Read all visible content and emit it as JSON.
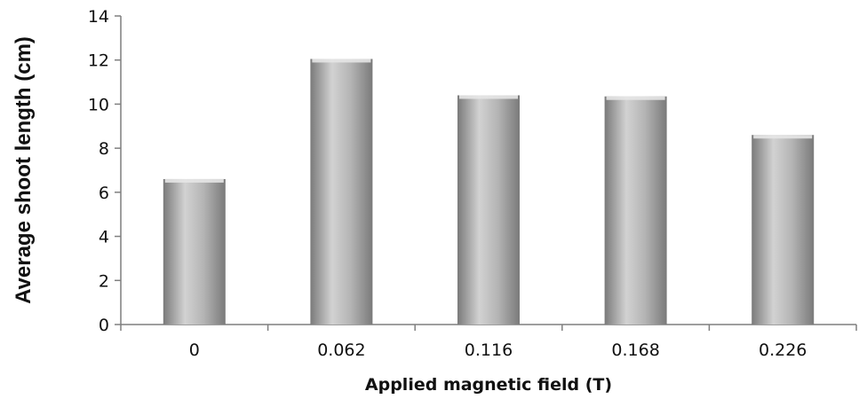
{
  "chart_data": {
    "type": "bar",
    "title": "",
    "xlabel": "Applied magnetic field (T)",
    "ylabel": "Average shoot length (cm)",
    "categories": [
      "0",
      "0.062",
      "0.116",
      "0.168",
      "0.226"
    ],
    "values": [
      6.6,
      12.05,
      10.4,
      10.35,
      8.6
    ],
    "ylim": [
      0,
      14
    ],
    "yticks": [
      "0",
      "2",
      "4",
      "6",
      "8",
      "10",
      "12",
      "14"
    ],
    "grid": false,
    "legend": "none",
    "colors": {
      "bar_light": "#d2d2d2",
      "bar_mid": "#b4b4b4",
      "bar_dark": "#7a7a7a",
      "bar_top": "#e6e6e6",
      "axis": "#7f7f7f"
    }
  }
}
